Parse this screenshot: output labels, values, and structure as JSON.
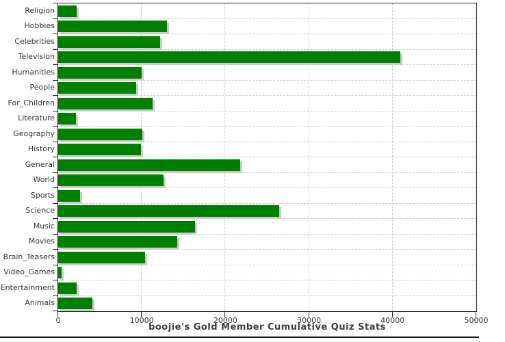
{
  "title": "boojie's Gold Member Cumulative Quiz Stats",
  "chart_data": {
    "type": "bar",
    "orientation": "horizontal",
    "title": "boojie's Gold Member Cumulative Quiz Stats",
    "xlabel": "",
    "ylabel": "",
    "categories": [
      "Religion",
      "Hobbies",
      "Celebrities",
      "Television",
      "Humanities",
      "People",
      "For_Children",
      "Literature",
      "Geography",
      "History",
      "General",
      "World",
      "Sports",
      "Science",
      "Music",
      "Movies",
      "Brain_Teasers",
      "Video_Games",
      "Entertainment",
      "Animals"
    ],
    "values": [
      2200,
      13000,
      12200,
      40900,
      10000,
      9300,
      11300,
      2100,
      10100,
      9900,
      21800,
      12600,
      2600,
      26400,
      16400,
      14200,
      10400,
      400,
      2200,
      4100
    ],
    "xlim": [
      0,
      50000
    ],
    "x_ticks": [
      0,
      10000,
      20000,
      30000,
      40000,
      50000
    ],
    "x_tick_labels": [
      "0",
      "10000",
      "20000",
      "30000",
      "40000",
      "50000"
    ],
    "grid": "dashed-major-x-and-row-boundaries",
    "legend": "none",
    "colors": {
      "bar": "#008000",
      "bar_shadow": "#cccccc",
      "grid": "#cccccc",
      "axis": "#222222",
      "tick_label": "#333333",
      "title": "#3d3d3d"
    }
  }
}
